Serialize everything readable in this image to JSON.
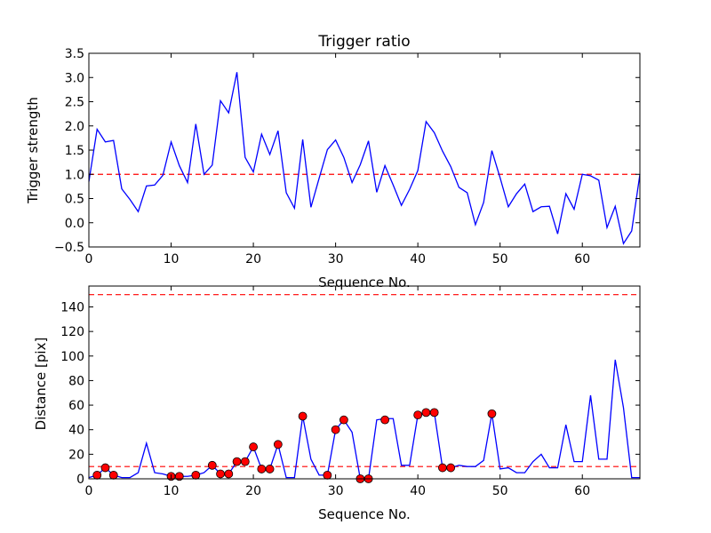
{
  "chart_data": [
    {
      "type": "line",
      "title": "Trigger ratio",
      "xlabel": "Sequence No.",
      "ylabel": "Trigger strength",
      "xlim": [
        0,
        67
      ],
      "ylim": [
        -0.5,
        3.5
      ],
      "xticks": [
        "0",
        "10",
        "20",
        "30",
        "40",
        "50",
        "60"
      ],
      "yticks": [
        "−0.5",
        "0.0",
        "0.5",
        "1.0",
        "1.5",
        "2.0",
        "2.5",
        "3.0",
        "3.5"
      ],
      "threshold": 1.0,
      "line_color": "#0000ff",
      "threshold_color": "#ff0000",
      "x": [
        0,
        1,
        2,
        3,
        4,
        5,
        6,
        7,
        8,
        9,
        10,
        11,
        12,
        13,
        14,
        15,
        16,
        17,
        18,
        19,
        20,
        21,
        22,
        23,
        24,
        25,
        26,
        27,
        28,
        29,
        30,
        31,
        32,
        33,
        34,
        35,
        36,
        37,
        38,
        39,
        40,
        41,
        42,
        43,
        44,
        45,
        46,
        47,
        48,
        49,
        50,
        51,
        52,
        53,
        54,
        55,
        56,
        57,
        58,
        59,
        60,
        61,
        62,
        63,
        64,
        65,
        66,
        67
      ],
      "values": [
        0.85,
        1.93,
        1.67,
        1.7,
        0.7,
        0.48,
        0.23,
        0.76,
        0.78,
        0.98,
        1.67,
        1.18,
        0.83,
        2.04,
        1.0,
        1.19,
        2.52,
        2.27,
        3.11,
        1.35,
        1.05,
        1.83,
        1.41,
        1.9,
        0.62,
        0.3,
        1.72,
        0.32,
        0.92,
        1.51,
        1.71,
        1.35,
        0.83,
        1.2,
        1.69,
        0.63,
        1.18,
        0.78,
        0.36,
        0.69,
        1.08,
        2.09,
        1.86,
        1.48,
        1.16,
        0.73,
        0.62,
        -0.04,
        0.42,
        1.49,
        0.93,
        0.33,
        0.6,
        0.8,
        0.23,
        0.33,
        0.34,
        -0.23,
        0.6,
        0.28,
        1.0,
        0.97,
        0.88,
        -0.1,
        0.34,
        -0.43,
        -0.17,
        1.0
      ]
    },
    {
      "type": "line",
      "title": "",
      "xlabel": "Sequence No.",
      "ylabel": "Distance [pix]",
      "xlim": [
        0,
        67
      ],
      "ylim": [
        0,
        157
      ],
      "xticks": [
        "0",
        "10",
        "20",
        "30",
        "40",
        "50",
        "60"
      ],
      "yticks": [
        "0",
        "20",
        "40",
        "60",
        "80",
        "100",
        "120",
        "140"
      ],
      "thresholds": [
        10,
        150
      ],
      "line_color": "#0000ff",
      "threshold_color": "#ff0000",
      "marker_color": "#ff0000",
      "x": [
        0,
        1,
        2,
        3,
        4,
        5,
        6,
        7,
        8,
        9,
        10,
        11,
        12,
        13,
        14,
        15,
        16,
        17,
        18,
        19,
        20,
        21,
        22,
        23,
        24,
        25,
        26,
        27,
        28,
        29,
        30,
        31,
        32,
        33,
        34,
        35,
        36,
        37,
        38,
        39,
        40,
        41,
        42,
        43,
        44,
        45,
        46,
        47,
        48,
        49,
        50,
        51,
        52,
        53,
        54,
        55,
        56,
        57,
        58,
        59,
        60,
        61,
        62,
        63,
        64,
        65,
        66,
        67
      ],
      "values": [
        1,
        3,
        9,
        3,
        1,
        1,
        5,
        29,
        5,
        4,
        2,
        2,
        2,
        3,
        5,
        11,
        4,
        4,
        14,
        14,
        26,
        8,
        8,
        28,
        1,
        1,
        51,
        16,
        3,
        3,
        40,
        48,
        38,
        0,
        0,
        48,
        49,
        49,
        11,
        11,
        52,
        54,
        54,
        9,
        9,
        11,
        10,
        10,
        15,
        53,
        8,
        9,
        5,
        5,
        14,
        20,
        9,
        9,
        44,
        14,
        14,
        68,
        16,
        16,
        97,
        58,
        1,
        1
      ],
      "markers_x": [
        1,
        2,
        3,
        10,
        11,
        13,
        15,
        16,
        17,
        18,
        19,
        20,
        21,
        22,
        23,
        26,
        29,
        30,
        31,
        33,
        34,
        36,
        40,
        41,
        42,
        43,
        44,
        49
      ],
      "markers_y": [
        3,
        9,
        3,
        2,
        2,
        3,
        11,
        4,
        4,
        14,
        14,
        26,
        8,
        8,
        28,
        51,
        3,
        40,
        48,
        0,
        0,
        48,
        52,
        54,
        54,
        9,
        9,
        53
      ]
    }
  ]
}
